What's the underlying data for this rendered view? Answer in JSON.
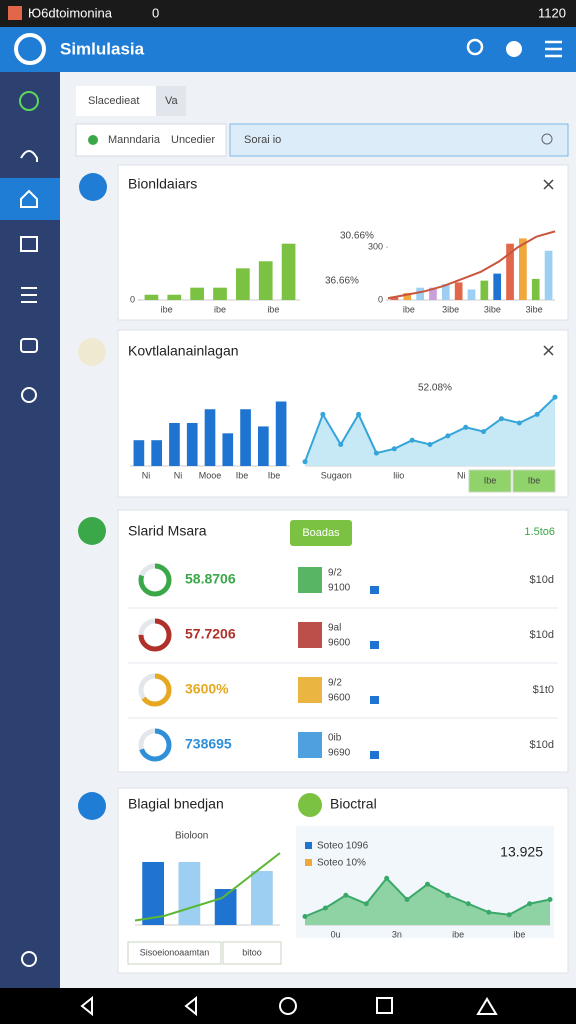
{
  "status": {
    "left": "Ю6dtoimonina",
    "signal": "0",
    "time": "1120"
  },
  "app": {
    "title": "Simlulasia"
  },
  "tabs": [
    "Slacedieat",
    "Va"
  ],
  "filters": [
    "Manndaria",
    "Uncedier"
  ],
  "search": {
    "placeholder": "Sorai io"
  },
  "cards": [
    {
      "title": "Bionldaiars",
      "charts": [
        {
          "type": "bar",
          "color": "#7cc242",
          "ylim": [
            0,
            100
          ],
          "yticks": [
            0
          ],
          "values": [
            6,
            6,
            14,
            14,
            36,
            44,
            64
          ],
          "x_labels": [
            "ibe",
            "ibe",
            "ibe"
          ],
          "notes": [
            "30.66%",
            "36.66%"
          ]
        },
        {
          "type": "combo",
          "colors": [
            "#e2674a",
            "#f0a83c",
            "#9ccff2",
            "#c9a0dc",
            "#9ccff2",
            "#e2674a",
            "#9ccff2",
            "#7cc242",
            "#1e74d0",
            "#e2674a",
            "#f0a83c",
            "#7cc242",
            "#9ccff2"
          ],
          "line_color": "#c8553d",
          "ylim": [
            0,
            500
          ],
          "yticks": [
            0,
            300
          ],
          "values": [
            20,
            40,
            70,
            70,
            90,
            100,
            60,
            110,
            150,
            320,
            350,
            120,
            280
          ],
          "line": [
            10,
            30,
            50,
            80,
            120,
            160,
            220,
            300,
            360,
            390
          ],
          "x_labels": [
            "ibe",
            "3ibe",
            "3ibe",
            "3ibe"
          ]
        }
      ]
    },
    {
      "title": "Kovtlalanainlagan",
      "charts": [
        {
          "type": "bar",
          "color": "#1e74d0",
          "ylim": [
            0,
            100
          ],
          "values": [
            30,
            30,
            50,
            50,
            66,
            38,
            66,
            46,
            75
          ],
          "x_labels": [
            "Ni",
            "Ni",
            "Mooe",
            "Ibe",
            "Ibe"
          ]
        },
        {
          "type": "area",
          "color": "#35a4d8",
          "fill": "#c7e9f6",
          "ylim": [
            0,
            100
          ],
          "values": [
            5,
            60,
            25,
            60,
            15,
            20,
            30,
            25,
            35,
            45,
            40,
            55,
            50,
            60,
            80
          ],
          "x_labels": [
            "Sugaon",
            "liio",
            "Ni",
            "Ibe"
          ],
          "notes": [
            "52.08%"
          ],
          "buttons": [
            "Ibe",
            "Ibe"
          ]
        }
      ]
    },
    {
      "title": "Slarid Msara",
      "button": "Boadas",
      "total": "1.5to6",
      "rows": [
        {
          "value": "58.8706",
          "progress": 80,
          "color": "#3aa848",
          "code": "9/2",
          "sub": "9100",
          "amount": "$10d"
        },
        {
          "value": "57.7206",
          "progress": 75,
          "color": "#b0302a",
          "code": "9al",
          "sub": "9600",
          "amount": "$10d"
        },
        {
          "value": "3600%",
          "progress": 65,
          "color": "#e6a820",
          "code": "9/2",
          "sub": "9600",
          "amount": "$1t0"
        },
        {
          "value": "738695",
          "progress": 70,
          "color": "#2f8fd8",
          "code": "0ib",
          "sub": "9690",
          "amount": "$10d"
        }
      ]
    },
    {
      "title": "Blagial bnedjan",
      "subtitle": "Bioctral",
      "value": "13.925",
      "charts": [
        {
          "type": "combo",
          "colors": [
            "#1e74d0",
            "#9ccff2",
            "#1e74d0",
            "#9ccff2"
          ],
          "line_color": "#5cb833",
          "ylim": [
            0,
            100
          ],
          "values": [
            70,
            70,
            40,
            60
          ],
          "line": [
            5,
            10,
            20,
            30,
            55,
            80
          ],
          "notes": [
            "Bioloon"
          ],
          "buttons": [
            "Sisoeionoaamtan",
            "bitoo"
          ]
        },
        {
          "type": "area",
          "color": "#3aa868",
          "fill": "#8fd3a4",
          "ylim": [
            0,
            100
          ],
          "values": [
            10,
            20,
            35,
            25,
            55,
            30,
            48,
            35,
            25,
            15,
            12,
            25,
            30
          ],
          "x_labels": [
            "0u",
            "3n",
            "ibe",
            "ibe"
          ],
          "legend": [
            "Soteo 1096",
            "Soteo 10%"
          ]
        }
      ]
    }
  ]
}
